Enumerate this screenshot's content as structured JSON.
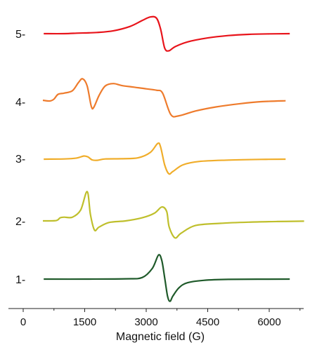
{
  "chart_data": {
    "type": "line",
    "xlabel": "Magnetic field (G)",
    "ylabel": "",
    "xlim": [
      -200,
      6900
    ],
    "x_ticks": [
      0,
      1500,
      3000,
      4500,
      6000
    ],
    "x_tick_labels": [
      "0",
      "1500",
      "3000",
      "4500",
      "6000"
    ],
    "grid": false,
    "legend": "none",
    "series": [
      {
        "label": "5-",
        "color": "#e8141b",
        "points": [
          [
            500,
            0
          ],
          [
            1000,
            0
          ],
          [
            1300,
            0.02
          ],
          [
            1500,
            0.03
          ],
          [
            1800,
            0.05
          ],
          [
            2200,
            0.12
          ],
          [
            2600,
            0.3
          ],
          [
            2900,
            0.55
          ],
          [
            3100,
            0.7
          ],
          [
            3250,
            0.65
          ],
          [
            3350,
            0.2
          ],
          [
            3450,
            -0.6
          ],
          [
            3550,
            -0.72
          ],
          [
            3700,
            -0.55
          ],
          [
            4000,
            -0.35
          ],
          [
            4500,
            -0.18
          ],
          [
            5000,
            -0.08
          ],
          [
            5500,
            -0.03
          ],
          [
            6000,
            -0.01
          ],
          [
            6500,
            0
          ]
        ]
      },
      {
        "label": "4-",
        "color": "#ee7b2c",
        "points": [
          [
            480,
            0
          ],
          [
            650,
            -0.03
          ],
          [
            750,
            0.05
          ],
          [
            850,
            0.25
          ],
          [
            1000,
            0.3
          ],
          [
            1200,
            0.4
          ],
          [
            1350,
            0.75
          ],
          [
            1450,
            0.9
          ],
          [
            1560,
            0.6
          ],
          [
            1660,
            -0.25
          ],
          [
            1720,
            -0.3
          ],
          [
            1850,
            0.2
          ],
          [
            2000,
            0.6
          ],
          [
            2200,
            0.7
          ],
          [
            2400,
            0.62
          ],
          [
            2700,
            0.55
          ],
          [
            3000,
            0.48
          ],
          [
            3250,
            0.42
          ],
          [
            3400,
            0.3
          ],
          [
            3600,
            -0.6
          ],
          [
            3800,
            -0.65
          ],
          [
            4200,
            -0.45
          ],
          [
            4700,
            -0.28
          ],
          [
            5300,
            -0.14
          ],
          [
            5800,
            -0.06
          ],
          [
            6400,
            -0.02
          ]
        ]
      },
      {
        "label": "3-",
        "color": "#f0ad2a",
        "points": [
          [
            500,
            0
          ],
          [
            1000,
            0.01
          ],
          [
            1300,
            0.05
          ],
          [
            1480,
            0.14
          ],
          [
            1580,
            0.1
          ],
          [
            1680,
            -0.03
          ],
          [
            1800,
            -0.05
          ],
          [
            2000,
            0.01
          ],
          [
            2400,
            0.02
          ],
          [
            2800,
            0.06
          ],
          [
            3100,
            0.3
          ],
          [
            3280,
            0.7
          ],
          [
            3350,
            0.55
          ],
          [
            3450,
            -0.25
          ],
          [
            3550,
            -0.65
          ],
          [
            3650,
            -0.55
          ],
          [
            3900,
            -0.25
          ],
          [
            4300,
            -0.1
          ],
          [
            5000,
            -0.04
          ],
          [
            5800,
            -0.01
          ],
          [
            6400,
            0
          ]
        ]
      },
      {
        "label": "2-",
        "color": "#bfbf2c",
        "points": [
          [
            480,
            0
          ],
          [
            800,
            0.01
          ],
          [
            900,
            0.1
          ],
          [
            1000,
            0.12
          ],
          [
            1200,
            0.12
          ],
          [
            1400,
            0.35
          ],
          [
            1560,
            0.95
          ],
          [
            1640,
            0.2
          ],
          [
            1740,
            -0.3
          ],
          [
            1850,
            -0.2
          ],
          [
            2100,
            -0.05
          ],
          [
            2500,
            0
          ],
          [
            2900,
            0.1
          ],
          [
            3200,
            0.25
          ],
          [
            3380,
            0.45
          ],
          [
            3500,
            0.3
          ],
          [
            3560,
            -0.2
          ],
          [
            3700,
            -0.55
          ],
          [
            3850,
            -0.4
          ],
          [
            4200,
            -0.15
          ],
          [
            4800,
            -0.08
          ],
          [
            5500,
            -0.04
          ],
          [
            6200,
            -0.02
          ],
          [
            6850,
            -0.01
          ]
        ]
      },
      {
        "label": "1-",
        "color": "#1f5a2a",
        "points": [
          [
            500,
            0
          ],
          [
            1500,
            0
          ],
          [
            2500,
            0.01
          ],
          [
            2900,
            0.05
          ],
          [
            3150,
            0.35
          ],
          [
            3300,
            0.78
          ],
          [
            3380,
            0.6
          ],
          [
            3450,
            0.05
          ],
          [
            3520,
            -0.55
          ],
          [
            3580,
            -0.72
          ],
          [
            3650,
            -0.55
          ],
          [
            3800,
            -0.28
          ],
          [
            4000,
            -0.12
          ],
          [
            4400,
            -0.04
          ],
          [
            5000,
            -0.01
          ],
          [
            6500,
            0
          ]
        ]
      }
    ]
  }
}
